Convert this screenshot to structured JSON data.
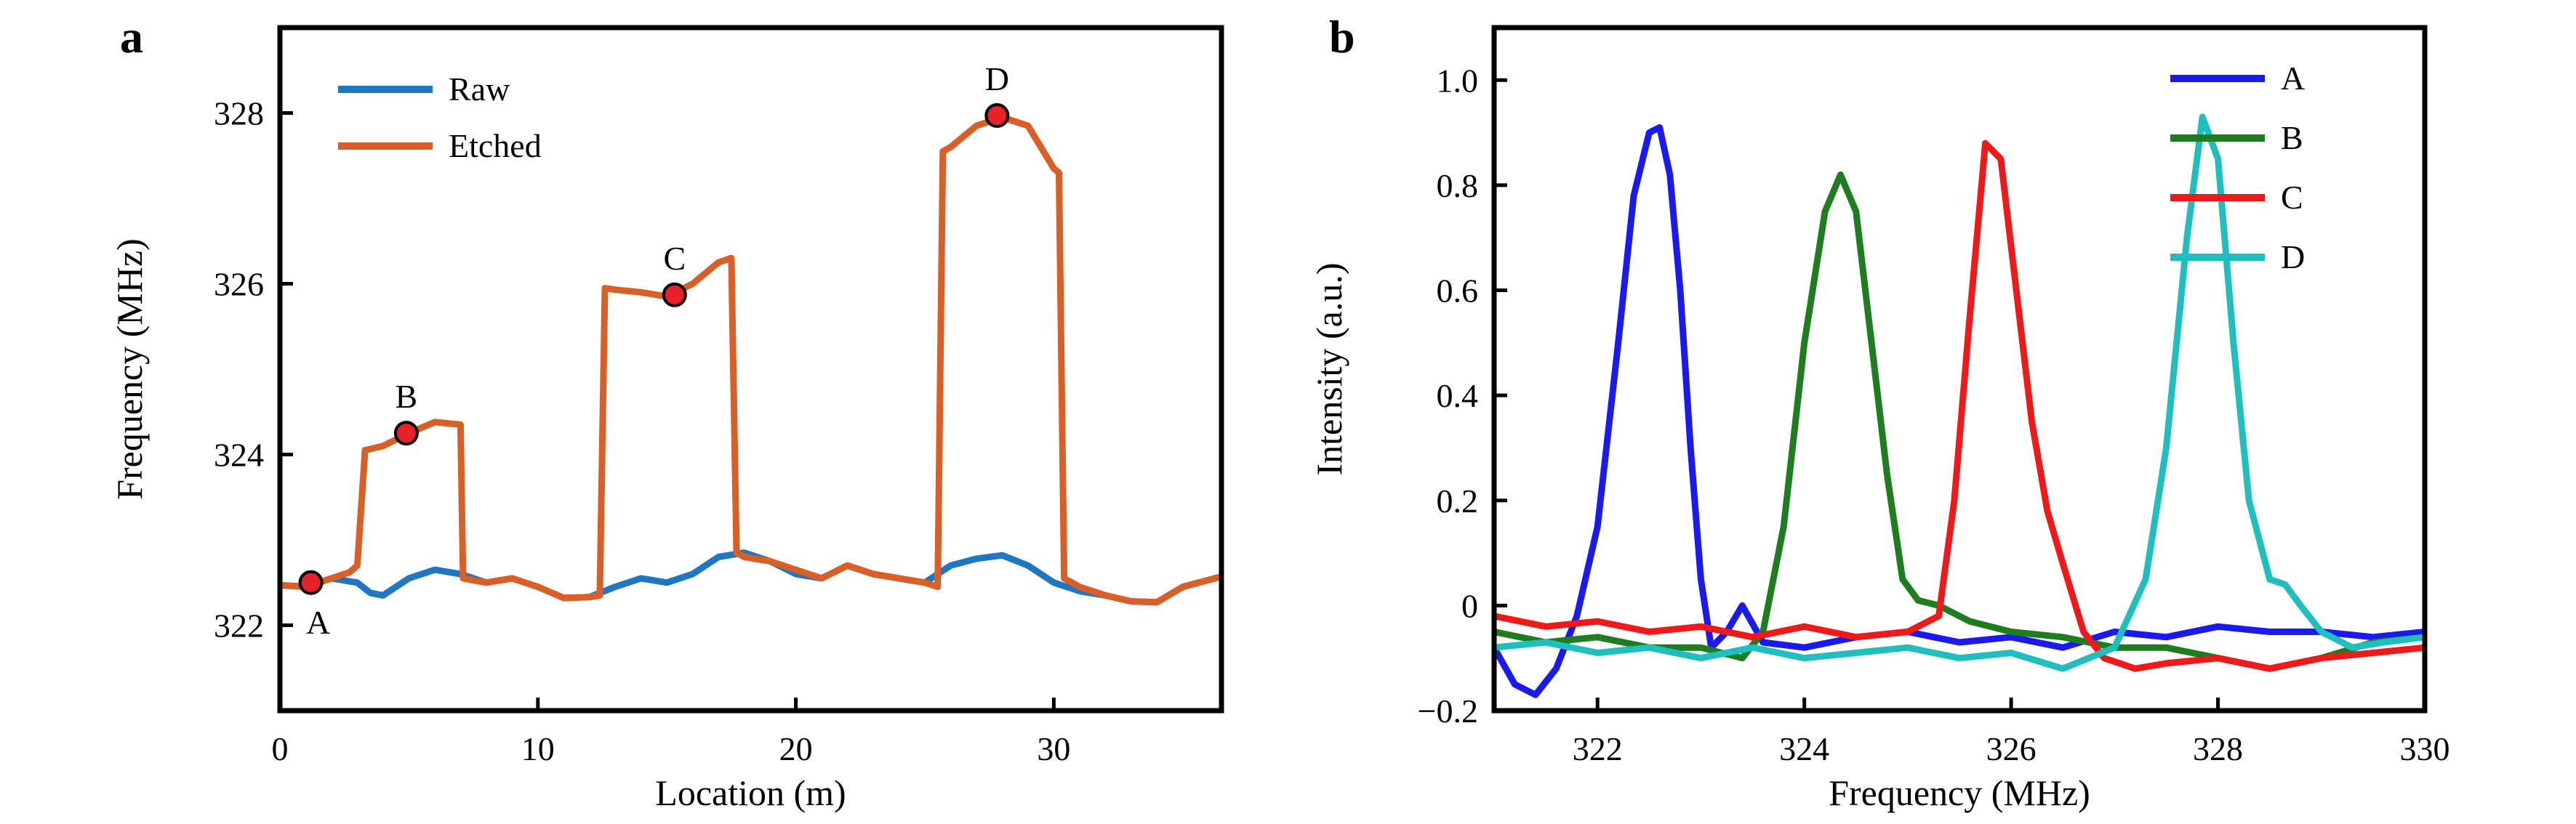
{
  "panels": {
    "a": {
      "letter": "a"
    },
    "b": {
      "letter": "b"
    }
  },
  "chart_data": [
    {
      "type": "line",
      "panel": "a",
      "xlabel": "Location (m)",
      "ylabel": "Frequency (MHz)",
      "xlim": [
        0,
        36.5
      ],
      "ylim": [
        321.0,
        329.0
      ],
      "xticks": [
        0,
        10,
        20,
        30
      ],
      "yticks": [
        322,
        324,
        326,
        328
      ],
      "xtick_labels": [
        "0",
        "10",
        "20",
        "30"
      ],
      "ytick_labels": [
        "322",
        "324",
        "326",
        "328"
      ],
      "grid": false,
      "legend_position": "top-left",
      "series": [
        {
          "name": "Raw",
          "color": "#1f77c4",
          "x": [
            0,
            1,
            2,
            3,
            3.5,
            4,
            5,
            6,
            7,
            8,
            9,
            10,
            11,
            12,
            13,
            14,
            15,
            16,
            17,
            18,
            19,
            20,
            21,
            22,
            23,
            24,
            25,
            26,
            27,
            28,
            29,
            30,
            31,
            32,
            33,
            34,
            35,
            36.5
          ],
          "y": [
            322.47,
            322.45,
            322.55,
            322.5,
            322.38,
            322.35,
            322.55,
            322.65,
            322.6,
            322.5,
            322.55,
            322.45,
            322.32,
            322.33,
            322.45,
            322.55,
            322.5,
            322.6,
            322.8,
            322.85,
            322.75,
            322.6,
            322.55,
            322.7,
            322.6,
            322.55,
            322.5,
            322.7,
            322.78,
            322.82,
            322.7,
            322.5,
            322.4,
            322.35,
            322.28,
            322.27,
            322.45,
            322.57
          ]
        },
        {
          "name": "Etched",
          "color": "#d95f27",
          "x": [
            0,
            1,
            2,
            2.7,
            3,
            3.3,
            4,
            5,
            6,
            7,
            7.1,
            8,
            9,
            10,
            11,
            12,
            12.4,
            12.6,
            13,
            14,
            15,
            16,
            17,
            17.5,
            17.7,
            18,
            19,
            20,
            21,
            22,
            23,
            24,
            25,
            25.5,
            25.7,
            26,
            27,
            28,
            29,
            30,
            30.2,
            30.4,
            31,
            32,
            33,
            34,
            35,
            36.5
          ],
          "y": [
            322.47,
            322.45,
            322.55,
            322.62,
            322.7,
            324.05,
            324.1,
            324.25,
            324.38,
            324.35,
            322.55,
            322.5,
            322.55,
            322.45,
            322.32,
            322.33,
            322.35,
            325.95,
            325.93,
            325.9,
            325.85,
            326.0,
            326.25,
            326.3,
            322.85,
            322.8,
            322.75,
            322.65,
            322.55,
            322.7,
            322.6,
            322.55,
            322.5,
            322.45,
            327.55,
            327.6,
            327.85,
            327.95,
            327.85,
            327.35,
            327.3,
            322.55,
            322.45,
            322.35,
            322.28,
            322.27,
            322.45,
            322.57
          ]
        }
      ],
      "markers": [
        {
          "label": "A",
          "x": 1.2,
          "y": 322.5,
          "label_position": "below"
        },
        {
          "label": "B",
          "x": 4.9,
          "y": 324.25,
          "label_position": "above"
        },
        {
          "label": "C",
          "x": 15.3,
          "y": 325.87,
          "label_position": "above"
        },
        {
          "label": "D",
          "x": 27.8,
          "y": 327.97,
          "label_position": "above"
        }
      ],
      "marker_fill": "#e8202a"
    },
    {
      "type": "line",
      "panel": "b",
      "xlabel": "Frequency (MHz)",
      "ylabel": "Intensity (a.u.)",
      "xlim": [
        321.0,
        330.0
      ],
      "ylim": [
        -0.2,
        1.1
      ],
      "xticks": [
        322,
        324,
        326,
        328,
        330
      ],
      "yticks": [
        -0.2,
        0,
        0.2,
        0.4,
        0.6,
        0.8,
        1.0
      ],
      "xtick_labels": [
        "322",
        "324",
        "326",
        "328",
        "330"
      ],
      "ytick_labels": [
        "−0.2",
        "0",
        "0.2",
        "0.4",
        "0.6",
        "0.8",
        "1.0"
      ],
      "grid": false,
      "legend_position": "top-right",
      "series": [
        {
          "name": "A",
          "color": "#1a1aee",
          "x": [
            321.0,
            321.2,
            321.4,
            321.6,
            321.8,
            322.0,
            322.2,
            322.35,
            322.5,
            322.6,
            322.7,
            322.8,
            322.9,
            323.0,
            323.1,
            323.25,
            323.4,
            323.6,
            324.0,
            324.5,
            325.0,
            325.5,
            326.0,
            326.5,
            327.0,
            327.5,
            328.0,
            328.5,
            329.0,
            329.5,
            330.0
          ],
          "y": [
            -0.08,
            -0.15,
            -0.17,
            -0.12,
            -0.02,
            0.15,
            0.5,
            0.78,
            0.9,
            0.91,
            0.82,
            0.6,
            0.3,
            0.05,
            -0.08,
            -0.05,
            0.0,
            -0.07,
            -0.08,
            -0.06,
            -0.05,
            -0.07,
            -0.06,
            -0.08,
            -0.05,
            -0.06,
            -0.04,
            -0.05,
            -0.05,
            -0.06,
            -0.05
          ]
        },
        {
          "name": "B",
          "color": "#1e7d1e",
          "x": [
            321.0,
            321.5,
            322.0,
            322.5,
            323.0,
            323.4,
            323.6,
            323.8,
            324.0,
            324.2,
            324.35,
            324.5,
            324.65,
            324.8,
            324.95,
            325.1,
            325.3,
            325.6,
            326.0,
            326.5,
            327.0,
            327.5,
            328.0,
            328.5,
            329.0,
            329.5,
            330.0
          ],
          "y": [
            -0.05,
            -0.07,
            -0.06,
            -0.08,
            -0.08,
            -0.1,
            -0.05,
            0.15,
            0.5,
            0.75,
            0.82,
            0.75,
            0.5,
            0.25,
            0.05,
            0.01,
            0.0,
            -0.03,
            -0.05,
            -0.06,
            -0.08,
            -0.08,
            -0.1,
            -0.12,
            -0.1,
            -0.07,
            -0.06
          ]
        },
        {
          "name": "C",
          "color": "#ee1a1a",
          "x": [
            321.0,
            321.5,
            322.0,
            322.5,
            323.0,
            323.5,
            324.0,
            324.5,
            325.0,
            325.3,
            325.45,
            325.6,
            325.75,
            325.9,
            326.05,
            326.2,
            326.35,
            326.5,
            326.7,
            326.9,
            327.2,
            327.5,
            328.0,
            328.5,
            329.0,
            329.5,
            330.0
          ],
          "y": [
            -0.02,
            -0.04,
            -0.03,
            -0.05,
            -0.04,
            -0.06,
            -0.04,
            -0.06,
            -0.05,
            -0.02,
            0.2,
            0.55,
            0.88,
            0.85,
            0.6,
            0.35,
            0.18,
            0.08,
            -0.05,
            -0.1,
            -0.12,
            -0.11,
            -0.1,
            -0.12,
            -0.1,
            -0.09,
            -0.08
          ]
        },
        {
          "name": "D",
          "color": "#1fbfbf",
          "x": [
            321.0,
            321.5,
            322.0,
            322.5,
            323.0,
            323.5,
            324.0,
            324.5,
            325.0,
            325.5,
            326.0,
            326.5,
            327.0,
            327.3,
            327.5,
            327.7,
            327.85,
            328.0,
            328.15,
            328.3,
            328.5,
            328.65,
            328.8,
            329.0,
            329.3,
            329.6,
            330.0
          ],
          "y": [
            -0.08,
            -0.07,
            -0.09,
            -0.08,
            -0.1,
            -0.08,
            -0.1,
            -0.09,
            -0.08,
            -0.1,
            -0.09,
            -0.12,
            -0.08,
            0.05,
            0.3,
            0.7,
            0.93,
            0.85,
            0.5,
            0.2,
            0.05,
            0.04,
            0.0,
            -0.05,
            -0.08,
            -0.07,
            -0.06
          ]
        }
      ]
    }
  ]
}
